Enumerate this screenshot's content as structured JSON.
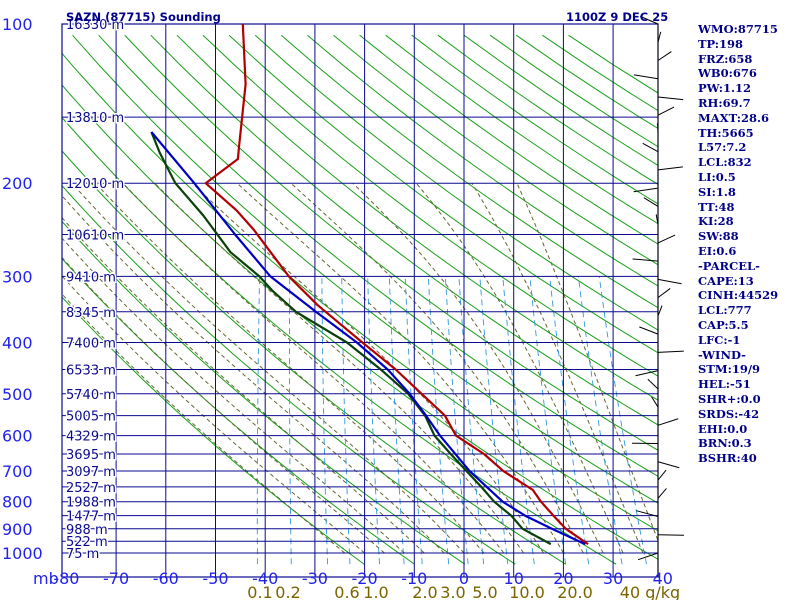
{
  "chart_data": {
    "type": "line",
    "title": "SAZN (87715) Sounding",
    "valid_time": "1100Z  9 DEC 25",
    "x_axis": {
      "unit_label": "mb",
      "ticks": [
        -80,
        -70,
        -60,
        -50,
        -40,
        -30,
        -20,
        -10,
        0,
        10,
        20,
        30,
        40
      ],
      "range": [
        -80,
        40
      ]
    },
    "y_axis": {
      "scale": "log",
      "range": [
        100,
        1000
      ],
      "pressure_ticks": [
        100,
        200,
        300,
        400,
        500,
        600,
        700,
        800,
        900,
        1000
      ],
      "height_labels": [
        {
          "p": 100,
          "label": "16330 m"
        },
        {
          "p": 150,
          "label": "13810 m"
        },
        {
          "p": 200,
          "label": "12010 m"
        },
        {
          "p": 250,
          "label": "10610 m"
        },
        {
          "p": 300,
          "label": "9410 m"
        },
        {
          "p": 350,
          "label": "8345 m"
        },
        {
          "p": 400,
          "label": "7400 m"
        },
        {
          "p": 450,
          "label": "6533 m"
        },
        {
          "p": 500,
          "label": "5740 m"
        },
        {
          "p": 550,
          "label": "5005 m"
        },
        {
          "p": 600,
          "label": "4329 m"
        },
        {
          "p": 650,
          "label": "3695 m"
        },
        {
          "p": 700,
          "label": "3097 m"
        },
        {
          "p": 750,
          "label": "2527 m"
        },
        {
          "p": 800,
          "label": "1988 m"
        },
        {
          "p": 850,
          "label": "1477 m"
        },
        {
          "p": 900,
          "label": "988 m"
        },
        {
          "p": 950,
          "label": "522 m"
        },
        {
          "p": 1000,
          "label": "75 m"
        }
      ]
    },
    "mixing_ratio_labels": [
      "0.1",
      "0.2",
      "0.6",
      "1.0",
      "2.0",
      "3.0",
      "5.0",
      "10.0",
      "20.0",
      "40 g/kg"
    ],
    "grid": true,
    "series": [
      {
        "key": "temperature",
        "color": "#b00000",
        "points": [
          [
            962,
            24.6
          ],
          [
            900,
            19.5
          ],
          [
            850,
            16.5
          ],
          [
            800,
            13.4
          ],
          [
            760,
            11.3
          ],
          [
            700,
            4.6
          ],
          [
            650,
            0
          ],
          [
            600,
            -6.4
          ],
          [
            550,
            -9.4
          ],
          [
            500,
            -15
          ],
          [
            450,
            -21.2
          ],
          [
            400,
            -29
          ],
          [
            340,
            -39.5
          ],
          [
            300,
            -46.5
          ],
          [
            245,
            -55.4
          ],
          [
            225,
            -59.7
          ],
          [
            200,
            -67
          ],
          [
            180,
            -61.5
          ],
          [
            170,
            -61.8
          ],
          [
            130,
            -63
          ],
          [
            100,
            -66
          ]
        ]
      },
      {
        "key": "dewpoint",
        "color": "#0a400a",
        "points": [
          [
            962,
            17.1
          ],
          [
            900,
            10.8
          ],
          [
            850,
            8
          ],
          [
            800,
            4
          ],
          [
            750,
            0.8
          ],
          [
            700,
            -2.8
          ],
          [
            650,
            -6.7
          ],
          [
            600,
            -10.7
          ],
          [
            550,
            -13.4
          ],
          [
            500,
            -17.7
          ],
          [
            450,
            -24.2
          ],
          [
            400,
            -32.1
          ],
          [
            350,
            -43.6
          ],
          [
            320,
            -49.1
          ],
          [
            300,
            -52.4
          ],
          [
            270,
            -59.2
          ],
          [
            230,
            -66.2
          ],
          [
            200,
            -73.1
          ],
          [
            175,
            -77.5
          ],
          [
            160,
            -80
          ]
        ]
      },
      {
        "key": "parcel",
        "color": "#0000c0",
        "points": [
          [
            962,
            24
          ],
          [
            900,
            16.7
          ],
          [
            850,
            10.8
          ],
          [
            800,
            5.7
          ],
          [
            700,
            -2.2
          ],
          [
            600,
            -9.6
          ],
          [
            550,
            -13.2
          ],
          [
            500,
            -17.4
          ],
          [
            450,
            -22.8
          ],
          [
            400,
            -30.1
          ],
          [
            350,
            -39.6
          ],
          [
            300,
            -50.2
          ],
          [
            250,
            -59
          ],
          [
            200,
            -69.3
          ],
          [
            160,
            -80
          ]
        ]
      }
    ],
    "wind_barbs": {
      "count": 30
    },
    "indices": [
      "WMO:87715",
      "TP:198",
      "FRZ:658",
      "WB0:676",
      "PW:1.12",
      "RH:69.7",
      "MAXT:28.6",
      "TH:5665",
      "L57:7.2",
      "LCL:832",
      "LI:0.5",
      "SI:1.8",
      "TT:48",
      "KI:28",
      "SW:88",
      "EI:0.6",
      "-PARCEL-",
      "CAPE:13",
      "CINH:44529",
      "LCL:777",
      "CAP:5.5",
      "LFC:-1",
      "-WIND-",
      "STM:19/9",
      "HEL:-51",
      "SHR+:0.0",
      "SRDS:-42",
      "EHI:0.0",
      "BRN:0.3",
      "BSHR:40"
    ],
    "colors": {
      "frame": "#0a0a90",
      "axis_text": "#2222ee",
      "mixing_text": "#7a6400",
      "dry_adiabat": "#18a018",
      "moist_adiabat": "#666633",
      "mixing_line": "#3399dd"
    }
  }
}
